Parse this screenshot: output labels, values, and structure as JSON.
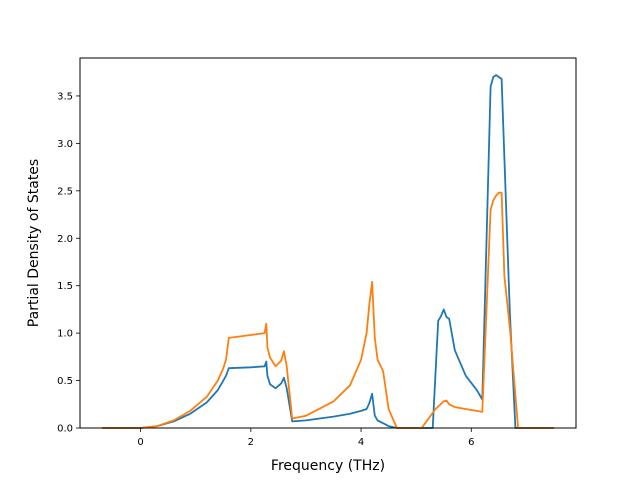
{
  "chart_data": {
    "type": "line",
    "title": "",
    "xlabel": "Frequency (THz)",
    "ylabel": "Partial Density of States",
    "xlim": [
      -1.1,
      7.9
    ],
    "ylim": [
      0,
      3.9
    ],
    "xticks": [
      0,
      2,
      4,
      6
    ],
    "xtick_labels": [
      "0",
      "2",
      "4",
      "6"
    ],
    "yticks": [
      0,
      0.5,
      1.0,
      1.5,
      2.0,
      2.5,
      3.0,
      3.5
    ],
    "ytick_labels": [
      "0.0",
      "0.5",
      "1.0",
      "1.5",
      "2.0",
      "2.5",
      "3.0",
      "3.5"
    ],
    "grid": false,
    "legend": "none",
    "series": [
      {
        "color": "#1f77b4",
        "x": [
          -0.7,
          0.0,
          0.3,
          0.6,
          0.9,
          1.2,
          1.4,
          1.5,
          1.55,
          1.6,
          2.0,
          2.25,
          2.28,
          2.3,
          2.35,
          2.45,
          2.55,
          2.6,
          2.65,
          2.75,
          3.0,
          3.5,
          3.8,
          4.0,
          4.1,
          4.15,
          4.2,
          4.25,
          4.3,
          4.5,
          4.65,
          5.3,
          5.4,
          5.45,
          5.5,
          5.55,
          5.6,
          5.7,
          5.9,
          6.1,
          6.2,
          6.35,
          6.4,
          6.45,
          6.5,
          6.55,
          6.7,
          6.8,
          7.5
        ],
        "values": [
          0.0,
          0.0,
          0.02,
          0.07,
          0.15,
          0.27,
          0.4,
          0.5,
          0.55,
          0.63,
          0.64,
          0.65,
          0.7,
          0.55,
          0.46,
          0.42,
          0.47,
          0.53,
          0.42,
          0.07,
          0.08,
          0.12,
          0.15,
          0.18,
          0.2,
          0.26,
          0.36,
          0.13,
          0.08,
          0.02,
          0.0,
          0.0,
          1.13,
          1.18,
          1.25,
          1.17,
          1.15,
          0.82,
          0.55,
          0.4,
          0.3,
          3.6,
          3.7,
          3.72,
          3.7,
          3.68,
          1.2,
          0.0,
          0.0
        ]
      },
      {
        "color": "#ff7f0e",
        "x": [
          -0.7,
          0.0,
          0.3,
          0.6,
          0.9,
          1.2,
          1.4,
          1.5,
          1.55,
          1.6,
          2.0,
          2.25,
          2.28,
          2.3,
          2.35,
          2.45,
          2.55,
          2.6,
          2.65,
          2.75,
          3.0,
          3.5,
          3.8,
          4.0,
          4.1,
          4.15,
          4.2,
          4.25,
          4.3,
          4.4,
          4.5,
          4.65,
          5.1,
          5.25,
          5.35,
          5.5,
          5.55,
          5.6,
          5.7,
          6.2,
          6.35,
          6.4,
          6.45,
          6.5,
          6.55,
          6.6,
          6.7,
          6.85,
          7.5
        ],
        "values": [
          0.0,
          0.0,
          0.02,
          0.08,
          0.18,
          0.33,
          0.5,
          0.63,
          0.72,
          0.95,
          0.98,
          1.0,
          1.1,
          0.85,
          0.74,
          0.65,
          0.71,
          0.81,
          0.65,
          0.1,
          0.13,
          0.28,
          0.45,
          0.72,
          1.0,
          1.3,
          1.54,
          0.95,
          0.72,
          0.6,
          0.2,
          0.0,
          0.0,
          0.12,
          0.2,
          0.28,
          0.29,
          0.25,
          0.22,
          0.17,
          2.3,
          2.4,
          2.45,
          2.48,
          2.48,
          1.6,
          1.05,
          0.0,
          0.0
        ]
      }
    ]
  }
}
